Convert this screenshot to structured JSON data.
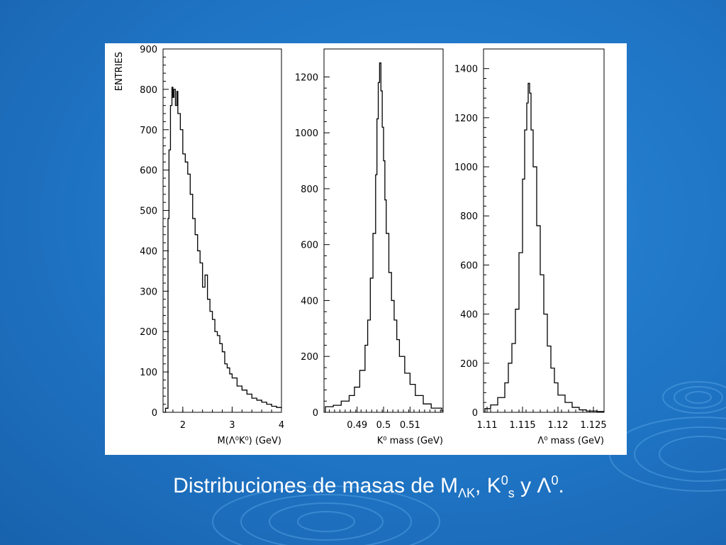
{
  "caption": {
    "text_before": "Distribuciones de masas de M",
    "sub1": "ΛK",
    "sep": ", K",
    "sup1": "0",
    "sub2": "s",
    "mid": " y Λ",
    "sup2": "0",
    "end": "."
  },
  "colors": {
    "background": "#1f74c4",
    "panel": "#ffffff",
    "ink": "#000000",
    "caption": "#ffffff"
  },
  "chart_data": [
    {
      "type": "bar",
      "style": "histogram-step",
      "ylabel": "ENTRIES",
      "xlabel": "M(Λ⁰K⁰) (GeV)",
      "xlim": [
        1.6,
        4.0
      ],
      "ylim": [
        0,
        900
      ],
      "x_ticks": [
        "2",
        "3",
        "4"
      ],
      "x_tick_values": [
        2,
        3,
        4
      ],
      "y_ticks": [
        "0",
        "100",
        "200",
        "300",
        "400",
        "500",
        "600",
        "700",
        "800",
        "900"
      ],
      "y_tick_values": [
        0,
        100,
        200,
        300,
        400,
        500,
        600,
        700,
        800,
        900
      ],
      "x": [
        1.6,
        1.65,
        1.7,
        1.72,
        1.75,
        1.78,
        1.8,
        1.82,
        1.85,
        1.88,
        1.9,
        1.95,
        2.0,
        2.05,
        2.1,
        2.15,
        2.2,
        2.25,
        2.3,
        2.35,
        2.4,
        2.45,
        2.5,
        2.55,
        2.6,
        2.65,
        2.7,
        2.75,
        2.8,
        2.85,
        2.9,
        2.95,
        3.0,
        3.1,
        3.2,
        3.3,
        3.4,
        3.5,
        3.6,
        3.7,
        3.8,
        3.9,
        4.0
      ],
      "values": [
        0,
        10,
        480,
        650,
        760,
        805,
        780,
        800,
        760,
        795,
        740,
        700,
        640,
        620,
        590,
        540,
        480,
        440,
        400,
        370,
        310,
        340,
        280,
        250,
        230,
        200,
        190,
        170,
        150,
        120,
        110,
        95,
        85,
        65,
        55,
        45,
        35,
        30,
        25,
        20,
        15,
        12,
        10
      ]
    },
    {
      "type": "bar",
      "style": "histogram-step",
      "xlabel": "K⁰ mass (GeV)",
      "xlim": [
        0.4775,
        0.5225
      ],
      "ylim": [
        0,
        1300
      ],
      "x_ticks": [
        "0.49",
        "0.5",
        "0.51"
      ],
      "x_tick_values": [
        0.49,
        0.5,
        0.51
      ],
      "y_ticks": [
        "0",
        "200",
        "400",
        "600",
        "800",
        "1000",
        "1200"
      ],
      "y_tick_values": [
        0,
        200,
        400,
        600,
        800,
        1000,
        1200
      ],
      "x": [
        0.478,
        0.481,
        0.484,
        0.487,
        0.489,
        0.491,
        0.493,
        0.494,
        0.495,
        0.496,
        0.497,
        0.4975,
        0.498,
        0.4985,
        0.499,
        0.4995,
        0.5,
        0.5005,
        0.501,
        0.502,
        0.503,
        0.504,
        0.505,
        0.506,
        0.508,
        0.51,
        0.512,
        0.515,
        0.518,
        0.522
      ],
      "values": [
        20,
        25,
        40,
        60,
        90,
        150,
        240,
        330,
        480,
        640,
        850,
        1050,
        1180,
        1250,
        1150,
        1020,
        900,
        760,
        640,
        500,
        400,
        330,
        260,
        200,
        140,
        100,
        60,
        30,
        15,
        5
      ]
    },
    {
      "type": "bar",
      "style": "histogram-step",
      "xlabel": "Λ⁰ mass (GeV)",
      "xlim": [
        1.1095,
        1.1265
      ],
      "ylim": [
        0,
        1480
      ],
      "x_ticks": [
        "1.11",
        "1.115",
        "1.12",
        "1.125"
      ],
      "x_tick_values": [
        1.11,
        1.115,
        1.12,
        1.125
      ],
      "y_ticks": [
        "0",
        "200",
        "400",
        "600",
        "800",
        "1000",
        "1200",
        "1400"
      ],
      "y_tick_values": [
        0,
        200,
        400,
        600,
        800,
        1000,
        1200,
        1400
      ],
      "x": [
        1.1097,
        1.1105,
        1.1115,
        1.1125,
        1.113,
        1.1135,
        1.114,
        1.1145,
        1.115,
        1.1153,
        1.1156,
        1.1158,
        1.116,
        1.1162,
        1.1165,
        1.117,
        1.1175,
        1.118,
        1.1185,
        1.119,
        1.1195,
        1.12,
        1.121,
        1.122,
        1.123,
        1.124,
        1.1255
      ],
      "values": [
        15,
        30,
        60,
        120,
        200,
        280,
        420,
        650,
        950,
        1150,
        1260,
        1340,
        1300,
        1150,
        1000,
        760,
        560,
        400,
        270,
        180,
        120,
        70,
        40,
        20,
        10,
        5,
        3
      ]
    }
  ]
}
